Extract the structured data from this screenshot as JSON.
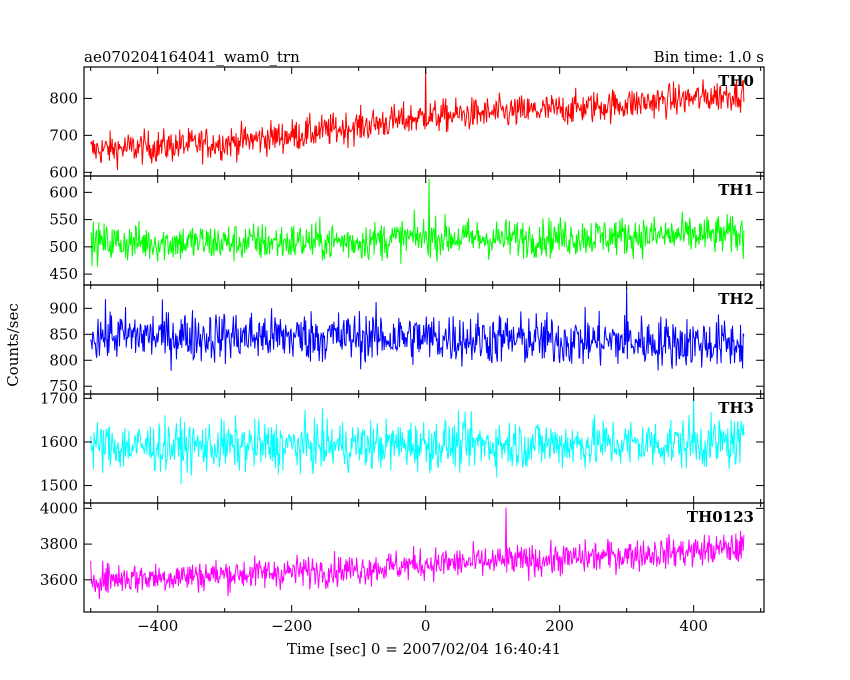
{
  "header": {
    "title": "ae070204164041_wam0_trn",
    "bin_time": "Bin time: 1.0 s"
  },
  "axes": {
    "xlabel": "Time [sec] 0 = 2007/02/04 16:40:41",
    "ylabel": "Counts/sec"
  },
  "chart_data": {
    "type": "line",
    "x_range": [
      -510,
      505
    ],
    "x_ticks": [
      -400,
      -200,
      0,
      200,
      400
    ],
    "x_tick_labels": [
      "−400",
      "−200",
      "0",
      "200",
      "400"
    ],
    "data_x_range": [
      -500,
      475
    ],
    "series": [
      {
        "name": "TH0",
        "color": "#ff0000",
        "ylim": [
          590,
          885
        ],
        "yticks": [
          600,
          700,
          800
        ],
        "trend_x": [
          -500,
          -400,
          -300,
          -200,
          -100,
          0,
          100,
          200,
          300,
          400,
          475
        ],
        "trend_y": [
          660,
          670,
          680,
          700,
          725,
          750,
          760,
          770,
          785,
          800,
          815
        ],
        "noise_amp": 40,
        "spike_x": 0,
        "spike_y": 885
      },
      {
        "name": "TH1",
        "color": "#00ff00",
        "ylim": [
          430,
          630
        ],
        "yticks": [
          450,
          500,
          550,
          600
        ],
        "trend_x": [
          -500,
          -300,
          -100,
          0,
          100,
          300,
          475
        ],
        "trend_y": [
          508,
          508,
          510,
          518,
          515,
          520,
          522
        ],
        "noise_amp": 32,
        "spike_x": 5,
        "spike_y": 625
      },
      {
        "name": "TH2",
        "color": "#0000ff",
        "ylim": [
          735,
          945
        ],
        "yticks": [
          750,
          800,
          850,
          900
        ],
        "trend_x": [
          -500,
          -300,
          -100,
          0,
          100,
          300,
          475
        ],
        "trend_y": [
          848,
          846,
          845,
          843,
          841,
          836,
          832
        ],
        "noise_amp": 45,
        "spike_x": 300,
        "spike_y": 940
      },
      {
        "name": "TH3",
        "color": "#00ffff",
        "ylim": [
          1460,
          1710
        ],
        "yticks": [
          1500,
          1600,
          1700
        ],
        "trend_x": [
          -500,
          -300,
          -100,
          0,
          100,
          300,
          475
        ],
        "trend_y": [
          1590,
          1590,
          1592,
          1595,
          1595,
          1596,
          1598
        ],
        "noise_amp": 52,
        "spike_x": 400,
        "spike_y": 1705
      },
      {
        "name": "TH0123",
        "color": "#ff00ff",
        "ylim": [
          3420,
          4030
        ],
        "yticks": [
          3600,
          3800,
          4000
        ],
        "trend_x": [
          -500,
          -400,
          -300,
          -200,
          -100,
          0,
          100,
          200,
          300,
          400,
          475
        ],
        "trend_y": [
          3605,
          3615,
          3630,
          3645,
          3660,
          3690,
          3700,
          3715,
          3740,
          3760,
          3780
        ],
        "noise_amp": 80,
        "spike_x": 120,
        "spike_y": 4005
      }
    ]
  }
}
